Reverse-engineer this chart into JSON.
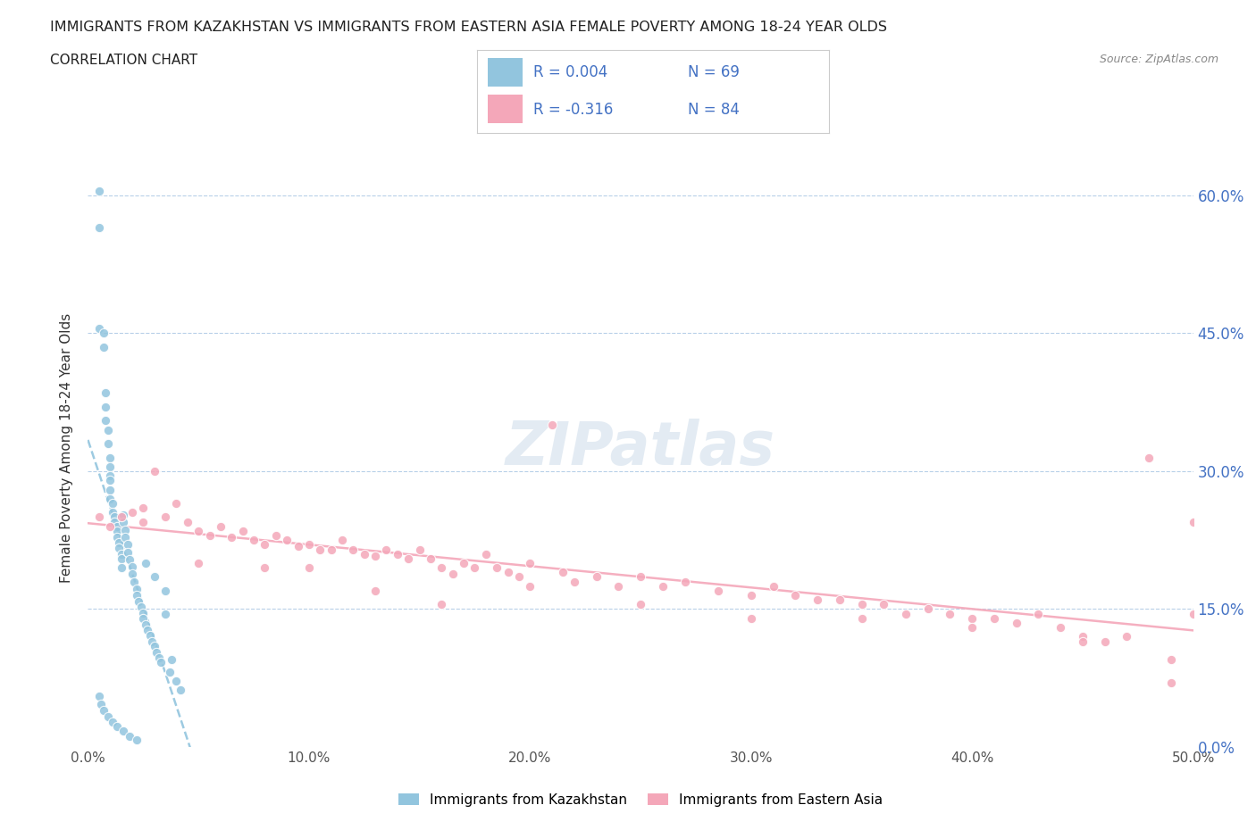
{
  "title": "IMMIGRANTS FROM KAZAKHSTAN VS IMMIGRANTS FROM EASTERN ASIA FEMALE POVERTY AMONG 18-24 YEAR OLDS",
  "subtitle": "CORRELATION CHART",
  "source": "Source: ZipAtlas.com",
  "ylabel": "Female Poverty Among 18-24 Year Olds",
  "xlim": [
    0.0,
    0.5
  ],
  "ylim": [
    0.0,
    0.65
  ],
  "yticks": [
    0.0,
    0.15,
    0.3,
    0.45,
    0.6
  ],
  "xticks": [
    0.0,
    0.1,
    0.2,
    0.3,
    0.4,
    0.5
  ],
  "color_kaz": "#92c5de",
  "color_asia": "#f4a7b9",
  "color_kaz_line": "#92c5de",
  "color_asia_line": "#f4a7b9",
  "color_label": "#4472c4",
  "R_kaz": 0.004,
  "N_kaz": 69,
  "R_asia": -0.316,
  "N_asia": 84,
  "kaz_x": [
    0.005,
    0.005,
    0.005,
    0.007,
    0.007,
    0.008,
    0.008,
    0.008,
    0.009,
    0.009,
    0.01,
    0.01,
    0.01,
    0.01,
    0.01,
    0.01,
    0.011,
    0.011,
    0.012,
    0.012,
    0.013,
    0.013,
    0.013,
    0.014,
    0.014,
    0.015,
    0.015,
    0.015,
    0.016,
    0.016,
    0.017,
    0.017,
    0.018,
    0.018,
    0.019,
    0.02,
    0.02,
    0.021,
    0.022,
    0.022,
    0.023,
    0.024,
    0.025,
    0.025,
    0.026,
    0.027,
    0.028,
    0.029,
    0.03,
    0.031,
    0.032,
    0.033,
    0.035,
    0.037,
    0.04,
    0.042,
    0.005,
    0.006,
    0.007,
    0.009,
    0.011,
    0.013,
    0.016,
    0.019,
    0.022,
    0.026,
    0.03,
    0.035,
    0.038
  ],
  "kaz_y": [
    0.605,
    0.565,
    0.455,
    0.45,
    0.435,
    0.385,
    0.37,
    0.355,
    0.345,
    0.33,
    0.315,
    0.305,
    0.295,
    0.29,
    0.28,
    0.27,
    0.265,
    0.255,
    0.25,
    0.245,
    0.24,
    0.235,
    0.228,
    0.222,
    0.216,
    0.21,
    0.205,
    0.195,
    0.252,
    0.245,
    0.236,
    0.228,
    0.22,
    0.212,
    0.204,
    0.196,
    0.188,
    0.18,
    0.172,
    0.165,
    0.158,
    0.152,
    0.146,
    0.14,
    0.133,
    0.127,
    0.121,
    0.115,
    0.11,
    0.103,
    0.097,
    0.092,
    0.145,
    0.082,
    0.072,
    0.062,
    0.055,
    0.047,
    0.04,
    0.033,
    0.027,
    0.022,
    0.017,
    0.012,
    0.008,
    0.2,
    0.185,
    0.17,
    0.095
  ],
  "asia_x": [
    0.005,
    0.01,
    0.015,
    0.02,
    0.025,
    0.03,
    0.035,
    0.04,
    0.045,
    0.05,
    0.055,
    0.06,
    0.065,
    0.07,
    0.075,
    0.08,
    0.085,
    0.09,
    0.095,
    0.1,
    0.105,
    0.11,
    0.115,
    0.12,
    0.125,
    0.13,
    0.135,
    0.14,
    0.145,
    0.15,
    0.155,
    0.16,
    0.165,
    0.17,
    0.175,
    0.18,
    0.185,
    0.19,
    0.195,
    0.2,
    0.21,
    0.215,
    0.22,
    0.23,
    0.24,
    0.25,
    0.26,
    0.27,
    0.285,
    0.3,
    0.31,
    0.32,
    0.33,
    0.34,
    0.35,
    0.36,
    0.37,
    0.38,
    0.39,
    0.4,
    0.41,
    0.42,
    0.43,
    0.44,
    0.45,
    0.46,
    0.47,
    0.48,
    0.49,
    0.5,
    0.025,
    0.05,
    0.08,
    0.1,
    0.13,
    0.16,
    0.2,
    0.25,
    0.3,
    0.35,
    0.4,
    0.45,
    0.49,
    0.5
  ],
  "asia_y": [
    0.25,
    0.24,
    0.25,
    0.255,
    0.245,
    0.3,
    0.25,
    0.265,
    0.245,
    0.235,
    0.23,
    0.24,
    0.228,
    0.235,
    0.225,
    0.22,
    0.23,
    0.225,
    0.218,
    0.22,
    0.215,
    0.215,
    0.225,
    0.215,
    0.21,
    0.208,
    0.215,
    0.21,
    0.205,
    0.215,
    0.205,
    0.195,
    0.188,
    0.2,
    0.195,
    0.21,
    0.195,
    0.19,
    0.185,
    0.2,
    0.35,
    0.19,
    0.18,
    0.185,
    0.175,
    0.185,
    0.175,
    0.18,
    0.17,
    0.165,
    0.175,
    0.165,
    0.16,
    0.16,
    0.155,
    0.155,
    0.145,
    0.15,
    0.145,
    0.14,
    0.14,
    0.135,
    0.145,
    0.13,
    0.12,
    0.115,
    0.12,
    0.315,
    0.095,
    0.145,
    0.26,
    0.2,
    0.195,
    0.195,
    0.17,
    0.155,
    0.175,
    0.155,
    0.14,
    0.14,
    0.13,
    0.115,
    0.07,
    0.245
  ]
}
